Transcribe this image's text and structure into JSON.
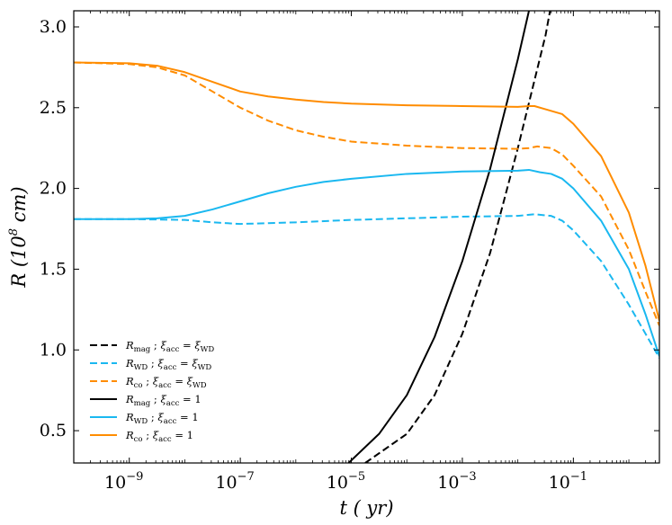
{
  "chart_data": {
    "type": "line",
    "xscale": "log",
    "xlim": [
      -10.0,
      0.55
    ],
    "ylim": [
      0.3,
      3.1
    ],
    "xlabel": "t ( yr)",
    "ylabel": "R (10^8 cm)",
    "xticks": [
      {
        "exp": -9,
        "label": "10",
        "sup": "−9"
      },
      {
        "exp": -7,
        "label": "10",
        "sup": "−7"
      },
      {
        "exp": -5,
        "label": "10",
        "sup": "−5"
      },
      {
        "exp": -3,
        "label": "10",
        "sup": "−3"
      },
      {
        "exp": -1,
        "label": "10",
        "sup": "−1"
      }
    ],
    "yticks": [
      "0.5",
      "1.0",
      "1.5",
      "2.0",
      "2.5",
      "3.0"
    ],
    "colors": {
      "mag": "#000000",
      "wd": "#1ab8f0",
      "co": "#ff8c00"
    },
    "series": [
      {
        "id": "r_mag_wd",
        "legend": "R_mag ; ξ_acc = ξ_WD",
        "color": "#000000",
        "dash": true,
        "points": [
          [
            -4.75,
            0.3
          ],
          [
            -4.0,
            0.48
          ],
          [
            -3.5,
            0.72
          ],
          [
            -3.0,
            1.1
          ],
          [
            -2.5,
            1.6
          ],
          [
            -2.0,
            2.25
          ],
          [
            -1.5,
            2.95
          ],
          [
            -1.42,
            3.1
          ]
        ]
      },
      {
        "id": "r_wd_wd",
        "legend": "R_WD ; ξ_acc = ξ_WD",
        "color": "#1ab8f0",
        "dash": true,
        "points": [
          [
            -10.0,
            1.81
          ],
          [
            -9.0,
            1.81
          ],
          [
            -8.0,
            1.805
          ],
          [
            -7.5,
            1.79
          ],
          [
            -7.0,
            1.78
          ],
          [
            -6.5,
            1.785
          ],
          [
            -6.0,
            1.79
          ],
          [
            -5.0,
            1.805
          ],
          [
            -4.0,
            1.815
          ],
          [
            -3.0,
            1.825
          ],
          [
            -2.0,
            1.83
          ],
          [
            -1.7,
            1.84
          ],
          [
            -1.4,
            1.83
          ],
          [
            -1.2,
            1.8
          ],
          [
            -1.0,
            1.74
          ],
          [
            -0.5,
            1.55
          ],
          [
            0.0,
            1.28
          ],
          [
            0.3,
            1.1
          ],
          [
            0.55,
            0.95
          ]
        ]
      },
      {
        "id": "r_co_wd",
        "legend": "R_co ; ξ_acc = ξ_WD",
        "color": "#ff8c00",
        "dash": true,
        "points": [
          [
            -10.0,
            2.78
          ],
          [
            -9.0,
            2.77
          ],
          [
            -8.5,
            2.75
          ],
          [
            -8.0,
            2.7
          ],
          [
            -7.5,
            2.6
          ],
          [
            -7.0,
            2.5
          ],
          [
            -6.5,
            2.42
          ],
          [
            -6.0,
            2.36
          ],
          [
            -5.5,
            2.32
          ],
          [
            -5.0,
            2.29
          ],
          [
            -4.0,
            2.265
          ],
          [
            -3.0,
            2.25
          ],
          [
            -2.0,
            2.245
          ],
          [
            -1.8,
            2.25
          ],
          [
            -1.65,
            2.26
          ],
          [
            -1.4,
            2.25
          ],
          [
            -1.2,
            2.21
          ],
          [
            -1.0,
            2.14
          ],
          [
            -0.5,
            1.95
          ],
          [
            0.0,
            1.62
          ],
          [
            0.3,
            1.36
          ],
          [
            0.55,
            1.15
          ]
        ]
      },
      {
        "id": "r_mag_1",
        "legend": "R_mag ; ξ_acc = 1",
        "color": "#000000",
        "dash": false,
        "points": [
          [
            -5.05,
            0.3
          ],
          [
            -4.5,
            0.48
          ],
          [
            -4.0,
            0.72
          ],
          [
            -3.5,
            1.08
          ],
          [
            -3.0,
            1.55
          ],
          [
            -2.5,
            2.12
          ],
          [
            -2.0,
            2.8
          ],
          [
            -1.8,
            3.1
          ]
        ]
      },
      {
        "id": "r_wd_1",
        "legend": "R_WD ; ξ_acc = 1",
        "color": "#1ab8f0",
        "dash": false,
        "points": [
          [
            -10.0,
            1.81
          ],
          [
            -9.0,
            1.81
          ],
          [
            -8.5,
            1.815
          ],
          [
            -8.0,
            1.83
          ],
          [
            -7.5,
            1.87
          ],
          [
            -7.0,
            1.92
          ],
          [
            -6.5,
            1.97
          ],
          [
            -6.0,
            2.01
          ],
          [
            -5.5,
            2.04
          ],
          [
            -5.0,
            2.06
          ],
          [
            -4.0,
            2.09
          ],
          [
            -3.0,
            2.105
          ],
          [
            -2.0,
            2.11
          ],
          [
            -1.8,
            2.115
          ],
          [
            -1.6,
            2.1
          ],
          [
            -1.4,
            2.09
          ],
          [
            -1.2,
            2.06
          ],
          [
            -1.0,
            2.0
          ],
          [
            -0.5,
            1.8
          ],
          [
            0.0,
            1.5
          ],
          [
            0.3,
            1.22
          ],
          [
            0.55,
            0.96
          ]
        ]
      },
      {
        "id": "r_co_1",
        "legend": "R_co ; ξ_acc = 1",
        "color": "#ff8c00",
        "dash": false,
        "points": [
          [
            -10.0,
            2.78
          ],
          [
            -9.0,
            2.775
          ],
          [
            -8.5,
            2.76
          ],
          [
            -8.0,
            2.72
          ],
          [
            -7.5,
            2.66
          ],
          [
            -7.0,
            2.6
          ],
          [
            -6.5,
            2.57
          ],
          [
            -6.0,
            2.55
          ],
          [
            -5.5,
            2.535
          ],
          [
            -5.0,
            2.525
          ],
          [
            -4.0,
            2.515
          ],
          [
            -3.0,
            2.51
          ],
          [
            -2.0,
            2.505
          ],
          [
            -1.8,
            2.51
          ],
          [
            -1.7,
            2.51
          ],
          [
            -1.5,
            2.49
          ],
          [
            -1.2,
            2.46
          ],
          [
            -1.0,
            2.4
          ],
          [
            -0.5,
            2.2
          ],
          [
            0.0,
            1.85
          ],
          [
            0.3,
            1.52
          ],
          [
            0.55,
            1.18
          ]
        ]
      }
    ],
    "legend": {
      "placement": "lower-left",
      "entries": [
        {
          "ref": "r_mag_wd",
          "main": "R",
          "sub": "mag",
          "sep": " ; ",
          "lhs": "ξ",
          "lhs_sub": "acc",
          "eq": " = ",
          "rhs": "ξ",
          "rhs_sub": "WD"
        },
        {
          "ref": "r_wd_wd",
          "main": "R",
          "sub": "WD",
          "sep": " ; ",
          "lhs": "ξ",
          "lhs_sub": "acc",
          "eq": " = ",
          "rhs": "ξ",
          "rhs_sub": "WD"
        },
        {
          "ref": "r_co_wd",
          "main": "R",
          "sub": "co",
          "sep": " ; ",
          "lhs": "ξ",
          "lhs_sub": "acc",
          "eq": " = ",
          "rhs": "ξ",
          "rhs_sub": "WD"
        },
        {
          "ref": "r_mag_1",
          "main": "R",
          "sub": "mag",
          "sep": " ; ",
          "lhs": "ξ",
          "lhs_sub": "acc",
          "eq": " = ",
          "rhs": "1",
          "rhs_sub": ""
        },
        {
          "ref": "r_wd_1",
          "main": "R",
          "sub": "WD",
          "sep": " ; ",
          "lhs": "ξ",
          "lhs_sub": "acc",
          "eq": " = ",
          "rhs": "1",
          "rhs_sub": ""
        },
        {
          "ref": "r_co_1",
          "main": "R",
          "sub": "co",
          "sep": " ; ",
          "lhs": "ξ",
          "lhs_sub": "acc",
          "eq": " = ",
          "rhs": "1",
          "rhs_sub": ""
        }
      ]
    }
  }
}
